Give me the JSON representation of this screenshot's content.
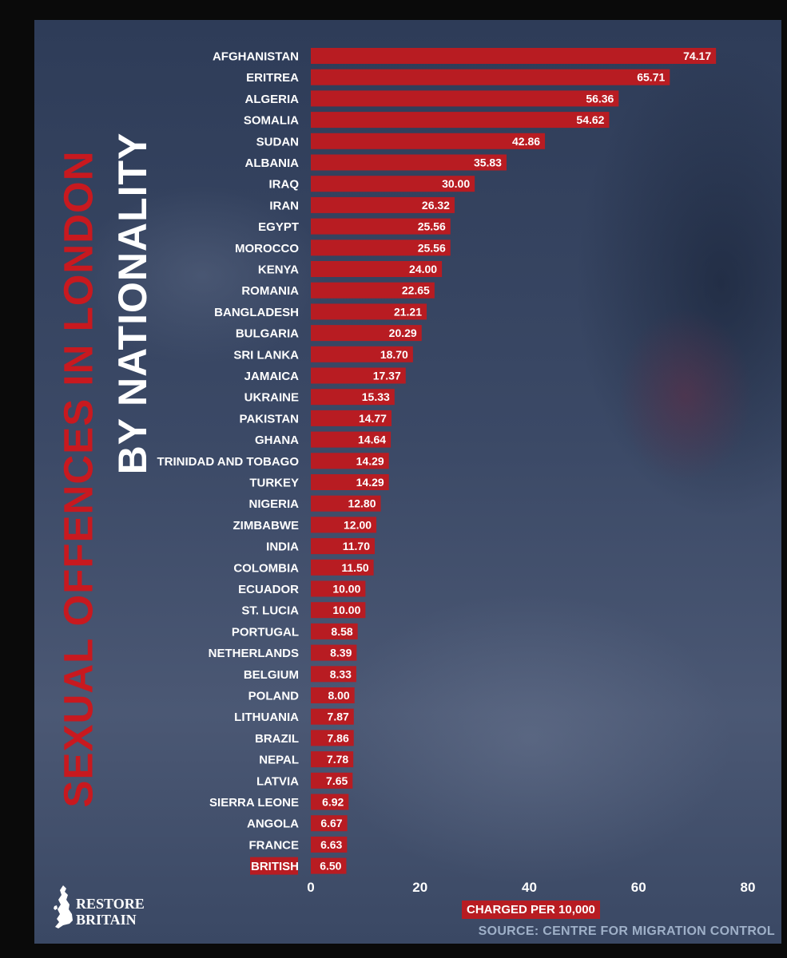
{
  "title": "SEXUAL OFFENCES IN LONDON",
  "subtitle": "BY NATIONALITY",
  "logo_text": [
    "RESTORE",
    "BRITAIN"
  ],
  "source": "SOURCE: CENTRE FOR MIGRATION CONTROL",
  "colors": {
    "bar": "#b81c22",
    "bar_highlight_label": "#b81c22",
    "title": "#c8191f",
    "background": "#3b4966"
  },
  "chart_data": {
    "type": "bar",
    "orientation": "horizontal",
    "title": "SEXUAL OFFENCES IN LONDON BY NATIONALITY",
    "xlabel": "CHARGED PER 10,000",
    "ylabel": "",
    "xlim": [
      0,
      80
    ],
    "xticks": [
      "0",
      "20",
      "40",
      "60",
      "80"
    ],
    "grid": false,
    "highlighted_category": "BRITISH",
    "categories": [
      "AFGHANISTAN",
      "ERITREA",
      "ALGERIA",
      "SOMALIA",
      "SUDAN",
      "ALBANIA",
      "IRAQ",
      "IRAN",
      "EGYPT",
      "MOROCCO",
      "KENYA",
      "ROMANIA",
      "BANGLADESH",
      "BULGARIA",
      "SRI LANKA",
      "JAMAICA",
      "UKRAINE",
      "PAKISTAN",
      "GHANA",
      "TRINIDAD AND TOBAGO",
      "TURKEY",
      "NIGERIA",
      "ZIMBABWE",
      "INDIA",
      "COLOMBIA",
      "ECUADOR",
      "ST. LUCIA",
      "PORTUGAL",
      "NETHERLANDS",
      "BELGIUM",
      "POLAND",
      "LITHUANIA",
      "BRAZIL",
      "NEPAL",
      "LATVIA",
      "SIERRA LEONE",
      "ANGOLA",
      "FRANCE",
      "BRITISH"
    ],
    "values": [
      74.17,
      65.71,
      56.36,
      54.62,
      42.86,
      35.83,
      30.0,
      26.32,
      25.56,
      25.56,
      24.0,
      22.65,
      21.21,
      20.29,
      18.7,
      17.37,
      15.33,
      14.77,
      14.64,
      14.29,
      14.29,
      12.8,
      12.0,
      11.7,
      11.5,
      10.0,
      10.0,
      8.58,
      8.39,
      8.33,
      8.0,
      7.87,
      7.86,
      7.78,
      7.65,
      6.92,
      6.67,
      6.63,
      6.5
    ],
    "value_labels": [
      "74.17",
      "65.71",
      "56.36",
      "54.62",
      "42.86",
      "35.83",
      "30.00",
      "26.32",
      "25.56",
      "25.56",
      "24.00",
      "22.65",
      "21.21",
      "20.29",
      "18.70",
      "17.37",
      "15.33",
      "14.77",
      "14.64",
      "14.29",
      "14.29",
      "12.80",
      "12.00",
      "11.70",
      "11.50",
      "10.00",
      "10.00",
      "8.58",
      "8.39",
      "8.33",
      "8.00",
      "7.87",
      "7.86",
      "7.78",
      "7.65",
      "6.92",
      "6.67",
      "6.63",
      "6.50"
    ]
  }
}
